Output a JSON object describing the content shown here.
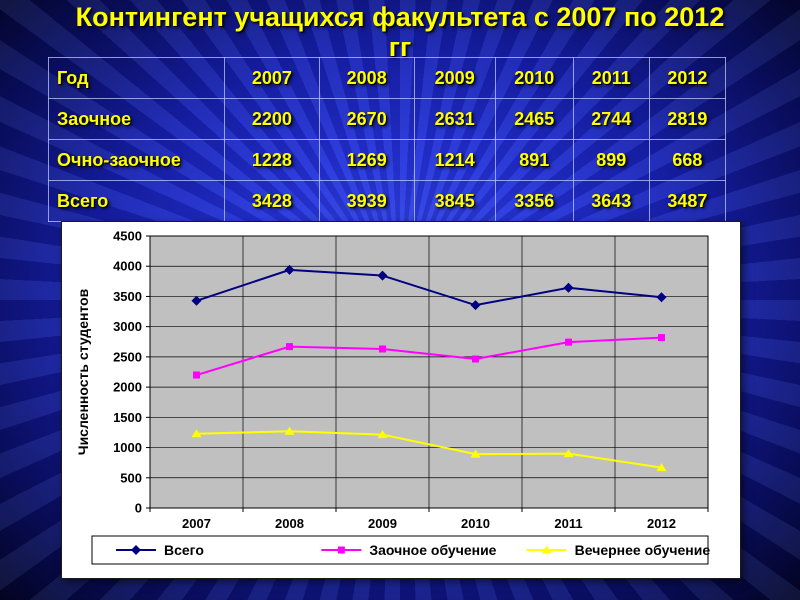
{
  "slide": {
    "title": "Контингент учащихся факультета с 2007 по 2012 гг"
  },
  "colors": {
    "title": "#ffff00",
    "table_text": "#ffff00",
    "series_total": "#000080",
    "series_zaochnoe": "#ff00ff",
    "series_vechernee": "#ffff00"
  },
  "table": {
    "header_label": "Год",
    "years": [
      "2007",
      "2008",
      "2009",
      "2010",
      "2011",
      "2012"
    ],
    "rows": [
      {
        "label": "Заочное",
        "values": [
          "2200",
          "2670",
          "2631",
          "2465",
          "2744",
          "2819"
        ]
      },
      {
        "label": "Очно-заочное",
        "values": [
          "1228",
          "1269",
          "1214",
          "891",
          "899",
          "668"
        ]
      },
      {
        "label": "Всего",
        "values": [
          "3428",
          "3939",
          "3845",
          "3356",
          "3643",
          "3487"
        ]
      }
    ]
  },
  "chart_data": {
    "type": "line",
    "categories": [
      "2007",
      "2008",
      "2009",
      "2010",
      "2011",
      "2012"
    ],
    "series": [
      {
        "name": "Всего",
        "values": [
          3428,
          3939,
          3845,
          3356,
          3643,
          3487
        ],
        "color": "#000080",
        "marker": "diamond"
      },
      {
        "name": "Заочное обучение",
        "values": [
          2200,
          2670,
          2631,
          2465,
          2744,
          2819
        ],
        "color": "#ff00ff",
        "marker": "square"
      },
      {
        "name": "Вечернее обучение",
        "values": [
          1228,
          1269,
          1214,
          891,
          899,
          668
        ],
        "color": "#ffff00",
        "marker": "triangle"
      }
    ],
    "title": "",
    "xlabel": "",
    "ylabel": "Численность студентов",
    "ylim": [
      0,
      4500
    ],
    "ytick_step": 500,
    "grid": true,
    "plot_bg": "#c0c0c0",
    "legend_position": "bottom"
  }
}
